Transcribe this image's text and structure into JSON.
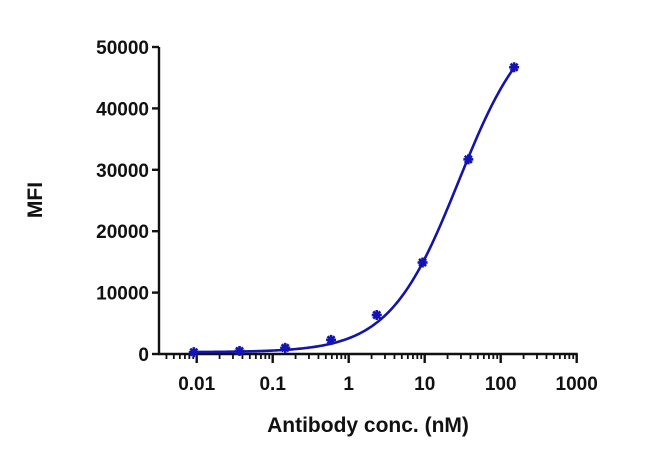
{
  "chart_data": {
    "type": "line",
    "title": "",
    "xlabel": "Antibody conc. (nM)",
    "ylabel": "MFI",
    "xscale": "log",
    "xlim": [
      0.003,
      1000
    ],
    "ylim": [
      0,
      50000
    ],
    "x_ticks": [
      "0.01",
      "0.1",
      "1",
      "10",
      "100",
      "1000"
    ],
    "y_ticks": [
      "0",
      "10000",
      "20000",
      "30000",
      "40000",
      "50000"
    ],
    "grid": false,
    "legend": null,
    "series": [
      {
        "name": "MFI",
        "marker": "asterisk",
        "color": "#1414b4",
        "x": [
          0.00916,
          0.0366,
          0.146,
          0.586,
          2.34,
          9.375,
          37.5,
          150
        ],
        "y": [
          300,
          500,
          1000,
          2300,
          6350,
          14900,
          31700,
          46700
        ],
        "fit": "4PL",
        "fit_params": {
          "bottom": 300,
          "top": 56000,
          "ec50": 28,
          "hill": 0.95
        }
      }
    ]
  }
}
